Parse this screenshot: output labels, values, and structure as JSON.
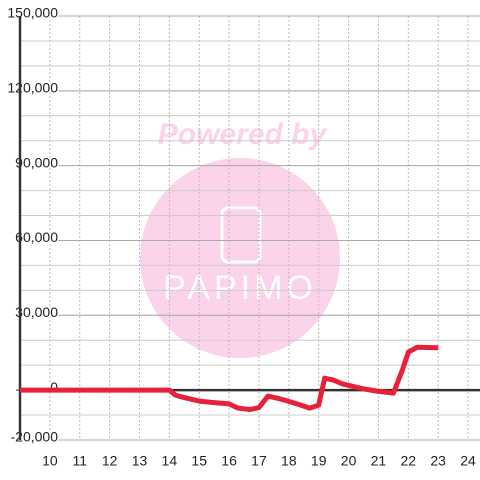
{
  "chart_data": {
    "type": "line",
    "watermark": {
      "line1": "Powered by",
      "line2": "PAPIMO"
    },
    "x": [
      9,
      14,
      14.2,
      14.5,
      15,
      15.5,
      16,
      16.3,
      16.7,
      17,
      17.3,
      17.7,
      18,
      18.3,
      18.7,
      19,
      19.2,
      19.5,
      19.8,
      20.5,
      21,
      21.5,
      21.8,
      22,
      22.3,
      23
    ],
    "series": [
      {
        "color": "#e8213a",
        "values": [
          0,
          0,
          -2000,
          -3000,
          -4400,
          -5000,
          -5500,
          -7200,
          -7800,
          -7000,
          -2400,
          -3500,
          -4500,
          -5600,
          -7200,
          -6000,
          4800,
          4000,
          2500,
          500,
          -500,
          -1200,
          8000,
          15200,
          17200,
          17000
        ]
      }
    ],
    "xlim": [
      9,
      24.4
    ],
    "xticks": [
      10,
      11,
      12,
      13,
      14,
      15,
      16,
      17,
      18,
      19,
      20,
      21,
      22,
      23,
      24
    ],
    "ylim": [
      -20000,
      150000
    ],
    "yticks": [
      {
        "value": -20000,
        "label": "-20,000"
      },
      0,
      {
        "value": 30000,
        "label": "30,000"
      },
      {
        "value": 60000,
        "label": "60,000"
      },
      {
        "value": 90000,
        "label": "90,000"
      },
      {
        "value": 120000,
        "label": "120,000"
      },
      {
        "value": 150000,
        "label": "150,000"
      }
    ],
    "minor_ygrid_step": 10000,
    "grid": true
  }
}
